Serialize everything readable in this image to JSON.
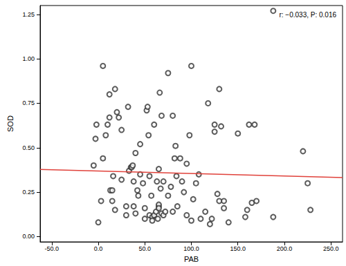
{
  "chart_data": {
    "type": "scatter",
    "x_label": "PAB",
    "y_label": "SOD",
    "annotation": "r: −0.033, P: 0.016",
    "xlim": [
      -62.5,
      262.5
    ],
    "ylim": [
      -0.03,
      1.3
    ],
    "xticks": [
      {
        "value": -50,
        "label": "-50.0"
      },
      {
        "value": 0,
        "label": "0.0"
      },
      {
        "value": 50,
        "label": "50.0"
      },
      {
        "value": 100,
        "label": "100.0"
      },
      {
        "value": 150,
        "label": "150.0"
      },
      {
        "value": 200,
        "label": "200.0"
      },
      {
        "value": 250,
        "label": "250.0"
      }
    ],
    "yticks": [
      {
        "value": 0,
        "label": "0.00"
      },
      {
        "value": 0.25,
        "label": "0.25"
      },
      {
        "value": 0.5,
        "label": "0.50"
      },
      {
        "value": 0.75,
        "label": "0.75"
      },
      {
        "value": 1,
        "label": "1.00"
      },
      {
        "value": 1.25,
        "label": "1.25"
      }
    ],
    "grid": false,
    "series": [
      {
        "type": "scatter",
        "color": "#333333",
        "marker": "circle-open",
        "x": [
          -5,
          -3,
          -2,
          0,
          3,
          5,
          5,
          8,
          10,
          12,
          12,
          13,
          15,
          15,
          16,
          18,
          18,
          20,
          22,
          25,
          25,
          30,
          30,
          32,
          33,
          35,
          36,
          37,
          38,
          38,
          40,
          40,
          42,
          43,
          45,
          45,
          48,
          50,
          50,
          52,
          53,
          54,
          55,
          55,
          57,
          58,
          58,
          60,
          60,
          62,
          63,
          64,
          65,
          65,
          65,
          65,
          66,
          67,
          68,
          68,
          70,
          70,
          72,
          75,
          75,
          78,
          80,
          80,
          82,
          83,
          84,
          85,
          88,
          90,
          92,
          95,
          95,
          98,
          100,
          100,
          102,
          105,
          108,
          110,
          115,
          118,
          120,
          122,
          125,
          125,
          128,
          130,
          130,
          132,
          135,
          135,
          140,
          150,
          158,
          160,
          162,
          165,
          168,
          170,
          188,
          188,
          220,
          225,
          228
        ],
        "values": [
          0.4,
          0.55,
          0.63,
          0.08,
          0.2,
          0.44,
          0.96,
          0.57,
          0.63,
          0.8,
          0.67,
          0.26,
          0.26,
          0.2,
          0.34,
          0.83,
          0.15,
          0.7,
          0.67,
          0.32,
          0.6,
          0.17,
          0.12,
          0.73,
          0.37,
          0.39,
          0.39,
          0.4,
          0.17,
          0.31,
          0.13,
          0.47,
          0.26,
          0.23,
          0.52,
          0.35,
          0.3,
          0.16,
          0.1,
          0.71,
          0.73,
          0.57,
          0.12,
          0.34,
          0.23,
          0.11,
          0.09,
          0.63,
          0.12,
          0.14,
          0.31,
          0.1,
          0.38,
          0.17,
          0.18,
          0.16,
          0.81,
          0.27,
          0.13,
          0.68,
          0.31,
          0.12,
          0.14,
          0.92,
          0.23,
          0.28,
          0.68,
          0.14,
          0.44,
          0.51,
          0.34,
          0.17,
          0.44,
          0.31,
          0.25,
          0.41,
          0.12,
          0.57,
          0.96,
          0.09,
          0.21,
          0.3,
          0.35,
          0.1,
          0.14,
          0.75,
          0.07,
          0.1,
          0.59,
          0.63,
          0.24,
          0.83,
          0.2,
          0.62,
          0.16,
          0.2,
          0.08,
          0.58,
          0.11,
          0.15,
          0.63,
          0.19,
          0.63,
          0.2,
          1.27,
          0.11,
          0.48,
          0.3,
          0.15
        ]
      },
      {
        "type": "line",
        "color": "#e0413a",
        "x": [
          -62.5,
          262.5
        ],
        "values": [
          0.378,
          0.332
        ]
      }
    ]
  }
}
